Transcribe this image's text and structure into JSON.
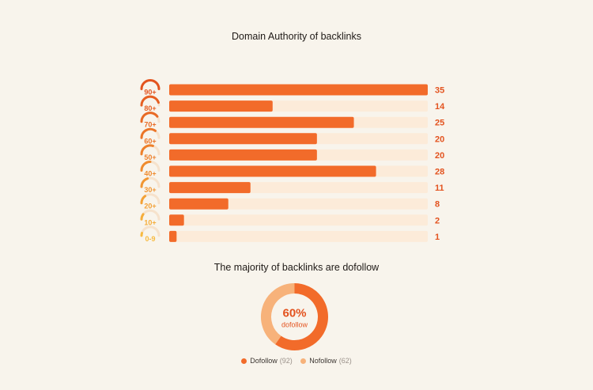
{
  "bar_title": "Domain Authority of backlinks",
  "donut_title": "The majority of backlinks are dofollow",
  "colors": {
    "bar": "#f26b2a",
    "track": "#fcebd9",
    "value_text": "#e3531f",
    "gauge_track": "#f6e2cc",
    "dofollow": "#f26b2a",
    "nofollow": "#f7b27a"
  },
  "donut": {
    "percent_label": "60%",
    "sub_label": "dofollow"
  },
  "legend": [
    {
      "label": "Dofollow",
      "count": "(92)"
    },
    {
      "label": "Nofollow",
      "count": "(62)"
    }
  ],
  "chart_data": [
    {
      "type": "bar",
      "orientation": "horizontal",
      "title": "Domain Authority of backlinks",
      "categories": [
        "90+",
        "80+",
        "70+",
        "60+",
        "50+",
        "40+",
        "30+",
        "20+",
        "10+",
        "0-9"
      ],
      "values": [
        35,
        14,
        25,
        20,
        20,
        28,
        11,
        8,
        2,
        1
      ],
      "xlim": [
        0,
        35
      ],
      "gauge_colors": [
        "#e3541f",
        "#e65f22",
        "#e86a25",
        "#eb7528",
        "#ed802b",
        "#ef8b2e",
        "#f19632",
        "#f3a136",
        "#f5ad3a",
        "#f7ba40"
      ]
    },
    {
      "type": "pie",
      "style": "donut",
      "title": "The majority of backlinks are dofollow",
      "labels": [
        "Dofollow",
        "Nofollow"
      ],
      "values": [
        92,
        62
      ]
    }
  ]
}
